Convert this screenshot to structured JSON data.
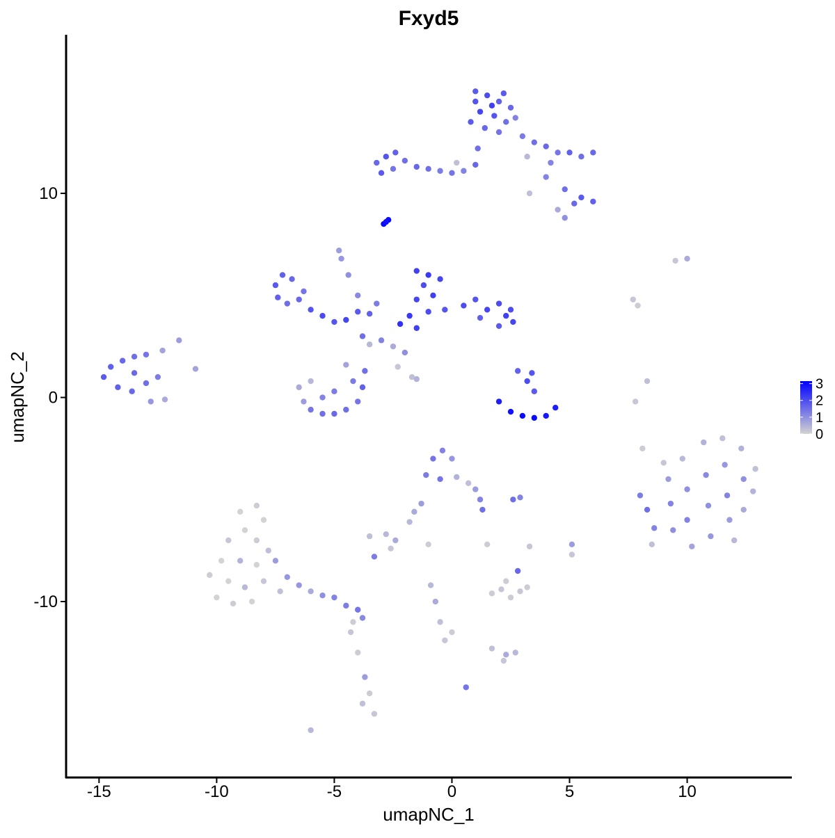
{
  "chart_data": {
    "type": "scatter",
    "title": "Fxyd5",
    "x_label": "umapNC_1",
    "y_label": "umapNC_2",
    "xlim": [
      -16.4,
      14.45
    ],
    "ylim": [
      -18.62,
      17.77
    ],
    "xticks": [
      -15,
      -10,
      -5,
      0,
      5,
      10
    ],
    "yticks": [
      -10,
      0,
      10
    ],
    "grid": false,
    "color_low": "#d3d3d3",
    "color_high": "#0000ff",
    "colorlim": [
      0,
      3.15
    ],
    "colorticks": [
      0,
      1,
      2,
      3
    ],
    "x": [
      1,
      1.5,
      2,
      2.5,
      1.2,
      1.8,
      2.3,
      0.8,
      1.4,
      2,
      2.7,
      1,
      1.7,
      2.2,
      3,
      3.5,
      4,
      4.5,
      5,
      5.5,
      6,
      4.2,
      3.2,
      4,
      4.8,
      5.5,
      6,
      5.2,
      4.5,
      4.8,
      3.3,
      -3.2,
      -2.8,
      -2.4,
      -2,
      -3,
      -2.5,
      -1.5,
      -1,
      -0.5,
      0,
      0.5,
      1,
      1.1,
      0.2,
      -2.9,
      -2.7,
      -2.8,
      -7.5,
      -7.2,
      -6.8,
      -7.4,
      -7,
      -6.5,
      -6,
      -5.5,
      -5,
      -4.5,
      -4,
      -3.5,
      -6.3,
      -4.8,
      -4.7,
      -4.4,
      -4,
      -3.2,
      -1.5,
      -1,
      -0.5,
      -1.2,
      -0.8,
      -1.5,
      -1.8,
      -1,
      -0.3,
      -2.2,
      -1.5,
      0.5,
      1,
      1.5,
      2,
      2.3,
      2.6,
      2,
      1.2,
      2.5,
      -3,
      -2.5,
      -2,
      -3.5,
      -2.3,
      -1.7,
      -1.5,
      -3.8,
      -6.5,
      -6.3,
      -6,
      -5.5,
      -5,
      -4.5,
      -4,
      -3.8,
      -3.7,
      -4.2,
      -5.5,
      -6,
      -5,
      -4.5,
      -14.8,
      -14.5,
      -14,
      -13.5,
      -13,
      -14.2,
      -13.6,
      -13,
      -12.5,
      -13.5,
      -12.8,
      -12.2,
      -11.6,
      -12.3,
      -10.9,
      2,
      2.5,
      3,
      3.5,
      4,
      4.4,
      3.2,
      3.4,
      2.8,
      3.5,
      7.7,
      7.9,
      9.5,
      10,
      8.3,
      7.8,
      8.1,
      8,
      8.3,
      8.6,
      8.5,
      9.2,
      9.3,
      9.4,
      9.8,
      10,
      10,
      10.2,
      10.7,
      10.8,
      10.9,
      11,
      11.5,
      11.6,
      11.7,
      11.8,
      12.3,
      12.4,
      12.4,
      12.9,
      12.8,
      12,
      9,
      -0.8,
      -0.4,
      0,
      -1.1,
      -0.5,
      0.2,
      0.7,
      1,
      1.2,
      1.3,
      -1.3,
      -1.6,
      -1.8,
      2.6,
      2.9,
      2.8,
      -3.5,
      -2.8,
      -2.4,
      -2.6,
      -3.3,
      -1,
      1.5,
      3.3,
      5.1,
      5.1,
      1.7,
      2.1,
      2.5,
      2.9,
      3.2,
      2.3,
      -0.9,
      -0.7,
      -0.5,
      -0.3,
      0,
      1.7,
      2.3,
      2.7,
      2.2,
      0.6,
      -9,
      -8.3,
      -8,
      -8.8,
      -9.5,
      -8.3,
      -7.8,
      -9.8,
      -9,
      -8.3,
      -7.5,
      -10.3,
      -9.5,
      -8.8,
      -8,
      -10,
      -9.3,
      -8.5,
      -7.3,
      -7,
      -6.5,
      -6,
      -5.5,
      -5,
      -4.5,
      -4,
      -3.8,
      -4.3,
      -4,
      -3.7,
      -3.5,
      -3.8,
      -3.3,
      -4.2,
      -6
    ],
    "y": [
      15,
      14.8,
      14.5,
      14.2,
      14,
      13.8,
      13.5,
      13.5,
      13.2,
      13,
      13.7,
      14.5,
      14.3,
      14.9,
      12.8,
      12.5,
      12.3,
      12,
      12,
      11.8,
      12,
      11.5,
      11.8,
      10.8,
      10.2,
      9.8,
      9.6,
      9.5,
      9.2,
      8.8,
      10,
      11.5,
      11.8,
      12,
      11.6,
      11,
      11.2,
      11.3,
      11.2,
      11.1,
      11,
      11.1,
      11.4,
      12.2,
      11.5,
      8.5,
      8.7,
      8.6,
      5.5,
      6,
      5.8,
      4.9,
      4.6,
      4.8,
      4.3,
      4,
      3.7,
      3.8,
      4.2,
      4.1,
      5.2,
      7.2,
      6.8,
      6,
      5,
      4.6,
      6.2,
      6,
      5.8,
      5.5,
      5,
      4.8,
      4,
      4.2,
      4.3,
      3.6,
      3.4,
      4.5,
      4.8,
      4.3,
      4.6,
      4,
      3.7,
      3.5,
      3.9,
      4.3,
      2.8,
      2.5,
      2.2,
      2.6,
      1.5,
      1,
      0.9,
      3,
      0.5,
      -0.2,
      -0.6,
      -0.8,
      -0.8,
      -0.6,
      -0.2,
      0.5,
      1.3,
      0.8,
      0,
      0.8,
      0.3,
      1.6,
      1,
      1.5,
      1.8,
      2,
      2.1,
      0.5,
      0.3,
      0.7,
      1,
      1.2,
      -0.2,
      -0.1,
      2.8,
      2.3,
      1.4,
      -0.2,
      -0.7,
      -0.9,
      -1,
      -0.9,
      -0.5,
      0.8,
      1.2,
      1.3,
      0.3,
      4.8,
      4.5,
      6.7,
      6.8,
      0.8,
      -0.2,
      -2.5,
      -4.8,
      -5.5,
      -6.4,
      -7.2,
      -4,
      -5.2,
      -6.5,
      -3,
      -4.5,
      -6,
      -7.3,
      -2.2,
      -3.8,
      -5.3,
      -6.8,
      -2,
      -3.3,
      -4.8,
      -6,
      -2.5,
      -4,
      -5.5,
      -3.5,
      -4.6,
      -7,
      -3.2,
      -3,
      -2.6,
      -3,
      -3.8,
      -4,
      -3.9,
      -4.2,
      -4.5,
      -5,
      -5.5,
      -5.2,
      -5.6,
      -6.1,
      -5,
      -4.9,
      -8.5,
      -6.8,
      -6.7,
      -7,
      -7.4,
      -7.8,
      -7.2,
      -7.2,
      -7.3,
      -7.2,
      -7.7,
      -9.6,
      -9.4,
      -9.8,
      -9.5,
      -9.3,
      -9,
      -9.2,
      -10,
      -11,
      -11.9,
      -11.5,
      -12.3,
      -12.6,
      -12.5,
      -12.9,
      -14.2,
      -5.6,
      -5.3,
      -6,
      -6.5,
      -7,
      -7,
      -7.5,
      -8,
      -8,
      -8.2,
      -8,
      -8.7,
      -9,
      -9.3,
      -9,
      -9.8,
      -10.1,
      -10,
      -9.5,
      -8.8,
      -9.2,
      -9.5,
      -9.7,
      -9.8,
      -10.2,
      -10.4,
      -10.8,
      -11.5,
      -12.5,
      -13.7,
      -14.5,
      -15,
      -15.5,
      -11,
      -16.3
    ],
    "values": [
      1.8,
      2,
      1.7,
      1.6,
      2.1,
      1.9,
      1.5,
      1.8,
      1.6,
      1.4,
      1.2,
      1.9,
      2.2,
      1.8,
      1.3,
      1.5,
      1.6,
      1.4,
      1.7,
      1.5,
      1.6,
      1.2,
      0.4,
      1.2,
      1.5,
      1.8,
      1.7,
      1.6,
      0.6,
      1,
      0.3,
      1.6,
      1.9,
      1.7,
      1.5,
      1.8,
      1.4,
      1.6,
      1.5,
      1.3,
      1.4,
      1.2,
      1.6,
      1.5,
      0.3,
      3,
      3,
      2.9,
      1.8,
      1.7,
      1.6,
      1.7,
      1.5,
      1.6,
      1.9,
      2,
      1.9,
      2.1,
      1.8,
      1.7,
      1.4,
      0.8,
      0.9,
      1,
      1.1,
      1.3,
      2.2,
      2.3,
      2.1,
      2,
      2.2,
      2.1,
      2.3,
      2,
      1.9,
      2.4,
      2.2,
      2,
      1.9,
      2.1,
      2,
      2.2,
      2.1,
      1.8,
      1.7,
      2,
      1.2,
      0.6,
      1,
      0.4,
      0.2,
      0.3,
      0.5,
      1.5,
      0.6,
      0.8,
      1.4,
      1.5,
      1.6,
      1.5,
      1.4,
      1.7,
      1.5,
      1.3,
      1.2,
      0.4,
      1.3,
      0.7,
      1.8,
      1.7,
      1.6,
      1.5,
      1.4,
      1.7,
      1.6,
      1.5,
      1.3,
      1.6,
      0.9,
      0.6,
      0.8,
      0.7,
      0.7,
      2.7,
      2.9,
      3,
      3,
      2.8,
      2.7,
      2,
      1.9,
      1.7,
      1.8,
      0.2,
      0.1,
      0.2,
      0.6,
      0.3,
      0.2,
      0.1,
      1.3,
      1.5,
      1.2,
      0.3,
      0.8,
      1.2,
      1,
      0.4,
      1,
      1.2,
      0.7,
      0.5,
      1.1,
      1,
      0.9,
      0.3,
      0.9,
      1.2,
      0.8,
      0.5,
      1,
      0.6,
      0.3,
      0.5,
      0.4,
      0.2,
      1.4,
      1.2,
      0.9,
      1.3,
      1.4,
      0.5,
      0.3,
      0.8,
      1.2,
      1.5,
      0.8,
      0.6,
      0.4,
      1.5,
      1.2,
      1.6,
      0.3,
      0.4,
      0.6,
      0.2,
      1.3,
      0.1,
      0.1,
      0.2,
      0.8,
      0.2,
      0.1,
      0.2,
      0.1,
      0.2,
      0.1,
      0.1,
      0.4,
      0.6,
      0.3,
      0.2,
      0.1,
      0.3,
      0.6,
      0.4,
      0.2,
      1.4,
      0,
      0.1,
      0,
      0,
      0.2,
      0.1,
      0.3,
      0,
      0.5,
      0,
      0.8,
      0.1,
      0,
      0.4,
      0.2,
      0,
      0.1,
      0,
      0.3,
      0.9,
      0.9,
      0.6,
      1,
      1.2,
      1.3,
      1.4,
      1.1,
      0.2,
      0.1,
      0.8,
      0.1,
      0.3,
      0.2,
      0.1,
      0.4
    ]
  }
}
